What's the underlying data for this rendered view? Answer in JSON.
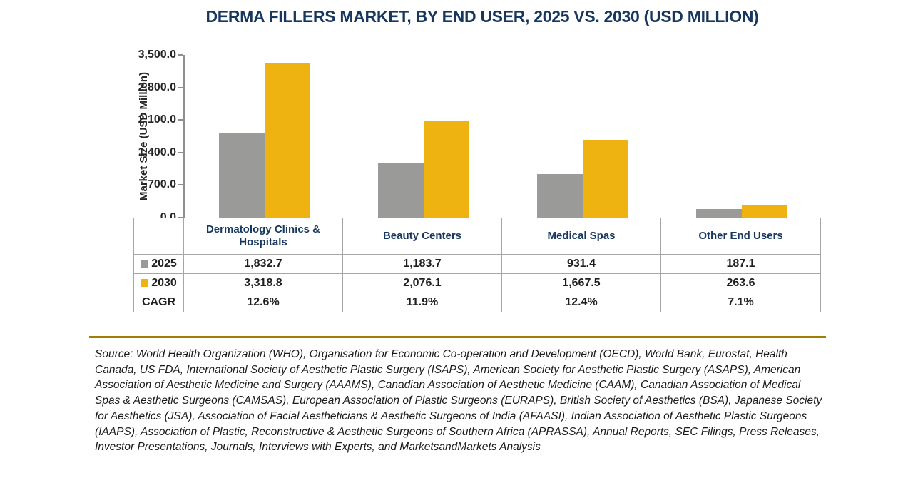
{
  "title": "DERMA FILLERS MARKET, BY END USER, 2025 VS. 2030 (USD MILLION)",
  "chart_data": {
    "type": "bar",
    "title": "DERMA FILLERS MARKET, BY END USER, 2025 VS. 2030 (USD MILLION)",
    "xlabel": "",
    "ylabel": "Market Size (USD Million)",
    "ylim": [
      0,
      3500
    ],
    "ytick_interval": 700,
    "yticks": [
      "0.0",
      "700.0",
      "1,400.0",
      "2,100.0",
      "2,800.0",
      "3,500.0"
    ],
    "grid": false,
    "legend_position": "table-left-column",
    "categories": [
      "Dermatology Clinics & Hospitals",
      "Beauty Centers",
      "Medical Spas",
      "Other End Users"
    ],
    "series": [
      {
        "name": "2025",
        "color": "#9A9A98",
        "values": [
          1832.7,
          1183.7,
          931.4,
          187.1
        ],
        "labels": [
          "1,832.7",
          "1,183.7",
          "931.4",
          "187.1"
        ]
      },
      {
        "name": "2030",
        "color": "#EEB211",
        "values": [
          3318.8,
          2076.1,
          1667.5,
          263.6
        ],
        "labels": [
          "3,318.8",
          "2,076.1",
          "1,667.5",
          "263.6"
        ]
      }
    ],
    "extra_rows": [
      {
        "name": "CAGR",
        "values": [
          "12.6%",
          "11.9%",
          "12.4%",
          "7.1%"
        ]
      }
    ]
  },
  "source": "Source: World Health Organization (WHO), Organisation for Economic Co-operation and Development (OECD), World Bank, Eurostat, Health Canada, US FDA, International Society of Aesthetic Plastic Surgery (ISAPS), American Society for Aesthetic Plastic Surgery (ASAPS), American Association of Aesthetic Medicine and Surgery (AAAMS), Canadian Association of Aesthetic Medicine (CAAM), Canadian Association of Medical Spas & Aesthetic Surgeons (CAMSAS), European Association of Plastic Surgeons (EURAPS), British Society of Aesthetics (BSA), Japanese Society for Aesthetics (JSA), Association of Facial Aestheticians & Aesthetic Surgeons of India (AFAASI), Indian Association of Aesthetic Plastic Surgeons (IAAPS), Association of Plastic, Reconstructive & Aesthetic Surgeons of Southern Africa (APRASSA), Annual Reports, SEC Filings, Press Releases, Investor Presentations, Journals, Interviews with Experts, and MarketsandMarkets Analysis",
  "colors": {
    "series_2025": "#9A9A98",
    "series_2030": "#EEB211",
    "title_navy": "#17375E",
    "table_border": "#A6A6A6",
    "axis_gray": "#8E8E8E",
    "divider_gold": "#A07E08"
  }
}
